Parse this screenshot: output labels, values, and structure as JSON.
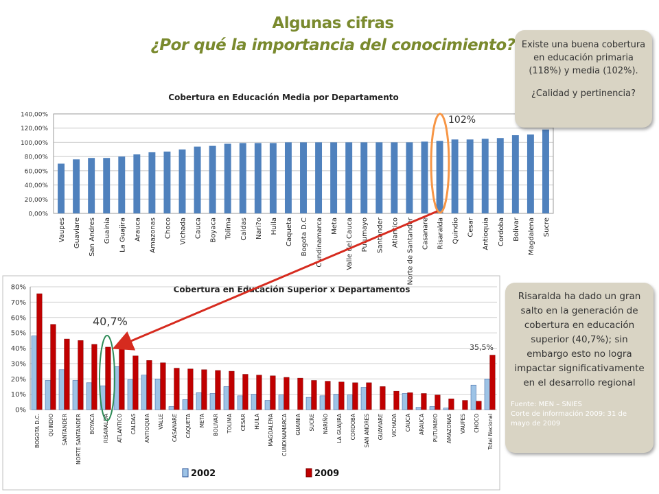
{
  "header": {
    "line1": "Algunas cifras",
    "line2": "¿Por qué la importancia del conocimiento?"
  },
  "panels": {
    "top": {
      "text": "Existe una buena cobertura en educación primaria (118%) y media (102%).",
      "question": "¿Calidad y pertinencia?"
    },
    "bottom": {
      "text": "Risaralda ha dado un gran salto en la generación de cobertura en educación superior (40,7%); sin embargo esto no logra impactar significativamente en el desarrollo regional",
      "source_line1": "Fuente: MEN – SNIES",
      "source_line2": "Corte de información 2009: 31 de mayo de 2009"
    }
  },
  "annotations": {
    "risaralda_media": "102%",
    "risaralda_superior": "40,7%",
    "total_nacional": "35,5%"
  },
  "colors": {
    "title": "#7a8a2e",
    "media_bar": "#4f81bd",
    "series_2002": "#9dc3e6",
    "series_2009": "#c00000",
    "arrow": "#d62b1f",
    "ellipse_top": "#f79646",
    "ellipse_bottom": "#2e8b57",
    "panel": "#d9d4c4"
  },
  "chart_data": [
    {
      "type": "bar",
      "title": "Cobertura en Educación Media por Departamento",
      "categories": [
        "Vaupes",
        "Guaviare",
        "San Andres",
        "Guainia",
        "La Guajira",
        "Arauca",
        "Amazonas",
        "Choco",
        "Vichada",
        "Cauca",
        "Boyaca",
        "Tolima",
        "Caldas",
        "Nari?o",
        "Huila",
        "Caqueta",
        "Bogota D.C",
        "Cundinamarca",
        "Meta",
        "Valle del Cauca",
        "Putumayo",
        "Santander",
        "Atlantico",
        "Norte de Santander",
        "Casanare",
        "Risaralda",
        "Quindio",
        "Cesar",
        "Antioquia",
        "Cordoba",
        "Bolivar",
        "Magdalena",
        "Sucre"
      ],
      "values": [
        70,
        76,
        78,
        78,
        80,
        83,
        86,
        87,
        90,
        94,
        95,
        98,
        99,
        99,
        99,
        100,
        100,
        100,
        100,
        100,
        100,
        100,
        100,
        100,
        101,
        102,
        104,
        104,
        105,
        106,
        110,
        111,
        118
      ],
      "ylim": [
        0,
        140
      ],
      "yticks": [
        "0,00%",
        "20,00%",
        "40,00%",
        "60,00%",
        "80,00%",
        "100,00%",
        "120,00%",
        "140,00%"
      ],
      "grid": true,
      "legend": "none"
    },
    {
      "type": "bar",
      "title": "Cobertura en Educación Superior x Departamentos",
      "categories": [
        "BOGOTA D.C.",
        "QUINDIO",
        "SANTANDER",
        "NORTE SANTANDER",
        "BOYACA",
        "RISARALDA",
        "ATLANTICO",
        "CALDAS",
        "ANTIOQUIA",
        "VALLE",
        "CASANARE",
        "CAQUETA",
        "META",
        "BOLIVAR",
        "TOLIMA",
        "CESAR",
        "HUILA",
        "MAGDALENA",
        "CUNDINAMARCA",
        "GUAINIA",
        "SUCRE",
        "NARIÑO",
        "LA GUAJIRA",
        "CORDOBA",
        "SAN ANDRES",
        "GUAVIARE",
        "VICHADA",
        "CAUCA",
        "ARAUCA",
        "PUTUMAYO",
        "AMAZONAS",
        "VAUPES",
        "CHOCO",
        "Total Nacional"
      ],
      "series": [
        {
          "name": "2002",
          "values": [
            48,
            19,
            26,
            19,
            17.5,
            15.5,
            28,
            19.5,
            22.5,
            20,
            2,
            6.5,
            11,
            10.5,
            15,
            9,
            10,
            6,
            9.5,
            0,
            8,
            9,
            10,
            9.5,
            14.5,
            0,
            0,
            10.5,
            1.5,
            2,
            1,
            0,
            16,
            20
          ]
        },
        {
          "name": "2009",
          "values": [
            75.5,
            55.5,
            46,
            45,
            42.5,
            40.7,
            40,
            35,
            32,
            30.5,
            27,
            26.5,
            26,
            25.5,
            25,
            23,
            22.5,
            22,
            21,
            20.5,
            19,
            18.5,
            18,
            17.5,
            17.5,
            15,
            12,
            11,
            10.5,
            9.5,
            7,
            6,
            5.5,
            35.5
          ]
        }
      ],
      "ylim": [
        0,
        80
      ],
      "yticks": [
        "0%",
        "10%",
        "20%",
        "30%",
        "40%",
        "50%",
        "60%",
        "70%",
        "80%"
      ],
      "grid": true,
      "legend": "bottom"
    }
  ]
}
